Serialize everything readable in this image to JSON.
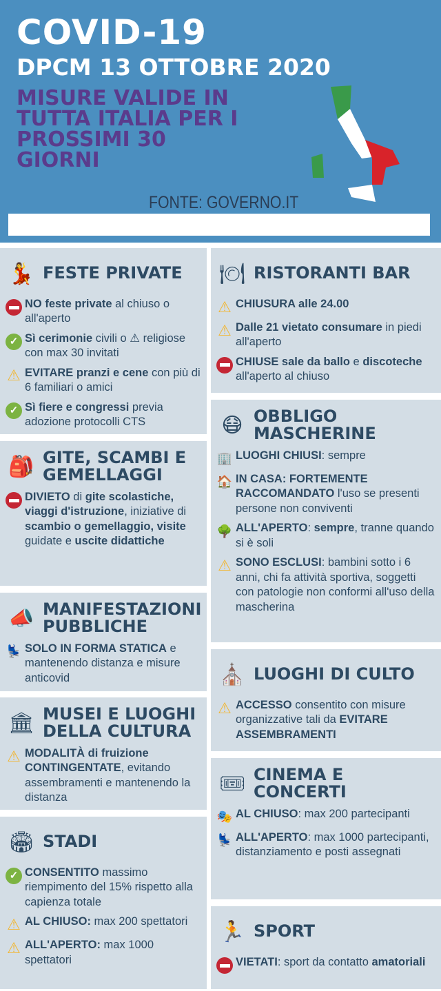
{
  "header": {
    "title": "COVID-19",
    "subtitle": "DPCM 13 OTTOBRE 2020",
    "measures": "MISURE VALIDE IN TUTTA ITALIA PER I PROSSIMI 30 GIORNI",
    "source": "FONTE: GOVERNO.IT"
  },
  "colors": {
    "header_bg": "#4b8fc0",
    "panel_bg": "#d3dde5",
    "text": "#2d4a63",
    "subtitle_purple": "#5b3b8c"
  },
  "panels": [
    {
      "id": "feste-private",
      "title": "FESTE PRIVATE",
      "icon": "people-dancing-icon",
      "items": [
        {
          "icon": "no-entry",
          "segs": [
            {
              "t": "NO feste private",
              "b": true
            },
            {
              "t": " al chiuso o all'aperto"
            }
          ]
        },
        {
          "icon": "check",
          "segs": [
            {
              "t": "Sì cerimonie",
              "b": true
            },
            {
              "t": " civili o ⚠ religiose con max 30 invitati"
            }
          ]
        },
        {
          "icon": "warning",
          "segs": [
            {
              "t": "EVITARE pranzi e cene",
              "b": true
            },
            {
              "t": " con più di 6 familiari o amici"
            }
          ]
        },
        {
          "icon": "check",
          "segs": [
            {
              "t": "Sì fiere e congressi",
              "b": true
            },
            {
              "t": " previa adozione protocolli CTS"
            }
          ]
        }
      ]
    },
    {
      "id": "gite",
      "title": "GITE, SCAMBI E GEMELLAGGI",
      "icon": "backpack-icon",
      "items": [
        {
          "icon": "no-entry",
          "segs": [
            {
              "t": "DIVIETO",
              "b": true
            },
            {
              "t": " di "
            },
            {
              "t": "gite scolastiche, viaggi d'istruzione",
              "b": true
            },
            {
              "t": ", iniziative di "
            },
            {
              "t": "scambio o gemellaggio, visite",
              "b": true
            },
            {
              "t": " guidate e "
            },
            {
              "t": "uscite didattiche",
              "b": true
            }
          ]
        }
      ]
    },
    {
      "id": "manifestazioni",
      "title": "MANIFESTAZIONI PUBBLICHE",
      "icon": "megaphone-icon",
      "items": [
        {
          "icon": "seats",
          "segs": [
            {
              "t": "SOLO IN FORMA STATICA",
              "b": true
            },
            {
              "t": " e mantenendo distanza e misure anticovid"
            }
          ]
        }
      ]
    },
    {
      "id": "musei",
      "title": "MUSEI E LUOGHI DELLA CULTURA",
      "icon": "museum-icon",
      "items": [
        {
          "icon": "warning",
          "segs": [
            {
              "t": "MODALITÀ di fruizione CONTINGENTATE",
              "b": true
            },
            {
              "t": ", evitando assembramenti e mantenendo la distanza"
            }
          ]
        }
      ]
    },
    {
      "id": "stadi",
      "title": "STADI",
      "icon": "stadium-icon",
      "items": [
        {
          "icon": "check",
          "segs": [
            {
              "t": "CONSENTITO",
              "b": true
            },
            {
              "t": " massimo riempimento del 15% rispetto alla capienza totale"
            }
          ]
        },
        {
          "icon": "warning",
          "segs": [
            {
              "t": "AL CHIUSO:",
              "b": true
            },
            {
              "t": " max 200 spettatori"
            }
          ]
        },
        {
          "icon": "warning",
          "segs": [
            {
              "t": "ALL'APERTO:",
              "b": true
            },
            {
              "t": " max 1000 spettatori"
            }
          ]
        }
      ]
    },
    {
      "id": "ristoranti",
      "title": "RISTORANTI BAR",
      "icon": "plate-icon",
      "items": [
        {
          "icon": "warning",
          "segs": [
            {
              "t": "CHIUSURA alle 24.00",
              "b": true
            }
          ]
        },
        {
          "icon": "warning",
          "segs": [
            {
              "t": "Dalle 21 vietato consumare",
              "b": true
            },
            {
              "t": " in piedi all'aperto"
            }
          ]
        },
        {
          "icon": "no-entry",
          "segs": [
            {
              "t": "CHIUSE sale da ballo",
              "b": true
            },
            {
              "t": " e "
            },
            {
              "t": "discoteche",
              "b": true
            },
            {
              "t": " all'aperto al chiuso"
            }
          ]
        }
      ]
    },
    {
      "id": "mascherine",
      "title": "OBBLIGO MASCHERINE",
      "icon": "mask-icon",
      "items": [
        {
          "icon": "building",
          "segs": [
            {
              "t": "LUOGHI CHIUSI",
              "b": true
            },
            {
              "t": ": sempre"
            }
          ]
        },
        {
          "icon": "house",
          "segs": [
            {
              "t": "IN CASA: FORTEMENTE RACCOMANDATO",
              "b": true
            },
            {
              "t": " l'uso se presenti persone non conviventi"
            }
          ]
        },
        {
          "icon": "trees",
          "segs": [
            {
              "t": "ALL'APERTO",
              "b": true
            },
            {
              "t": ": "
            },
            {
              "t": "sempre",
              "b": true
            },
            {
              "t": ", tranne quando si è soli"
            }
          ]
        },
        {
          "icon": "warning",
          "segs": [
            {
              "t": "SONO ESCLUSI",
              "b": true
            },
            {
              "t": ": bambini sotto i 6 anni, chi fa attività sportiva, soggetti con patologie non conformi all'uso della mascherina"
            }
          ]
        }
      ]
    },
    {
      "id": "culto",
      "title": "LUOGHI DI CULTO",
      "icon": "church-icon",
      "items": [
        {
          "icon": "warning",
          "segs": [
            {
              "t": "ACCESSO",
              "b": true
            },
            {
              "t": " consentito con misure organizzative tali da "
            },
            {
              "t": "EVITARE ASSEMBRAMENTI",
              "b": true
            }
          ]
        }
      ]
    },
    {
      "id": "cinema",
      "title": "CINEMA E CONCERTI",
      "icon": "cinema-tickets-icon",
      "items": [
        {
          "icon": "stage",
          "segs": [
            {
              "t": "AL CHIUSO",
              "b": true
            },
            {
              "t": ": max 200 partecipanti"
            }
          ]
        },
        {
          "icon": "seats",
          "segs": [
            {
              "t": "ALL'APERTO",
              "b": true
            },
            {
              "t": ": max 1000 partecipanti, distanziamento e posti assegnati"
            }
          ]
        }
      ]
    },
    {
      "id": "sport",
      "title": "SPORT",
      "icon": "runner-icon",
      "items": [
        {
          "icon": "no-entry",
          "segs": [
            {
              "t": "VIETATI",
              "b": true
            },
            {
              "t": ": sport da contatto "
            },
            {
              "t": "amatoriali",
              "b": true
            }
          ]
        }
      ]
    }
  ]
}
